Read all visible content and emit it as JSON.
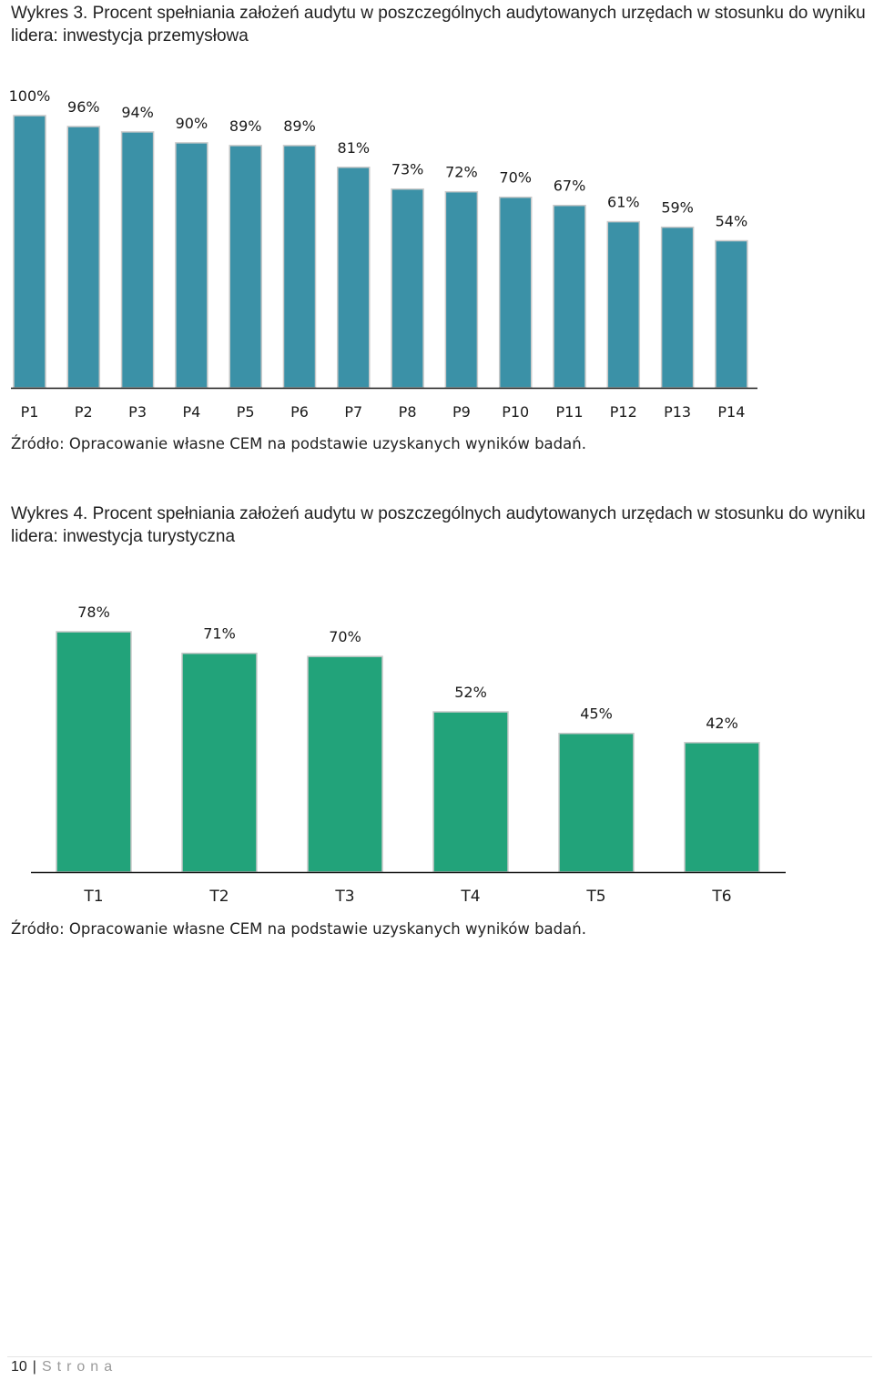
{
  "chart3": {
    "caption": "Wykres 3. Procent spełniania założeń audytu w poszczególnych audytowanych urzędach w stosunku do wyniku lidera: inwestycja przemysłowa",
    "source": "Źródło: Opracowanie własne CEM na podstawie uzyskanych wyników badań.",
    "color": "#3b91a7"
  },
  "chart4": {
    "caption": "Wykres 4. Procent spełniania założeń audytu w poszczególnych audytowanych urzędach w stosunku do wyniku lidera: inwestycja turystyczna",
    "source": "Źródło: Opracowanie własne CEM na podstawie uzyskanych wyników badań.",
    "color": "#22a37a"
  },
  "chart_data": [
    {
      "type": "bar",
      "title": "",
      "categories": [
        "P1",
        "P2",
        "P3",
        "P4",
        "P5",
        "P6",
        "P7",
        "P8",
        "P9",
        "P10",
        "P11",
        "P12",
        "P13",
        "P14"
      ],
      "values": [
        100,
        96,
        94,
        90,
        89,
        89,
        81,
        73,
        72,
        70,
        67,
        61,
        59,
        54
      ],
      "data_labels": [
        "100%",
        "96%",
        "94%",
        "90%",
        "89%",
        "89%",
        "81%",
        "73%",
        "72%",
        "70%",
        "67%",
        "61%",
        "59%",
        "54%"
      ],
      "xlabel": "",
      "ylabel": "",
      "ylim": [
        0,
        100
      ],
      "grid": false,
      "legend": "none"
    },
    {
      "type": "bar",
      "title": "",
      "categories": [
        "T1",
        "T2",
        "T3",
        "T4",
        "T5",
        "T6"
      ],
      "values": [
        78,
        71,
        70,
        52,
        45,
        42
      ],
      "data_labels": [
        "78%",
        "71%",
        "70%",
        "52%",
        "45%",
        "42%"
      ],
      "xlabel": "",
      "ylabel": "",
      "ylim": [
        0,
        78
      ],
      "grid": false,
      "legend": "none"
    }
  ],
  "footer": {
    "page_number": "10",
    "separator": "|",
    "word": "Strona"
  }
}
